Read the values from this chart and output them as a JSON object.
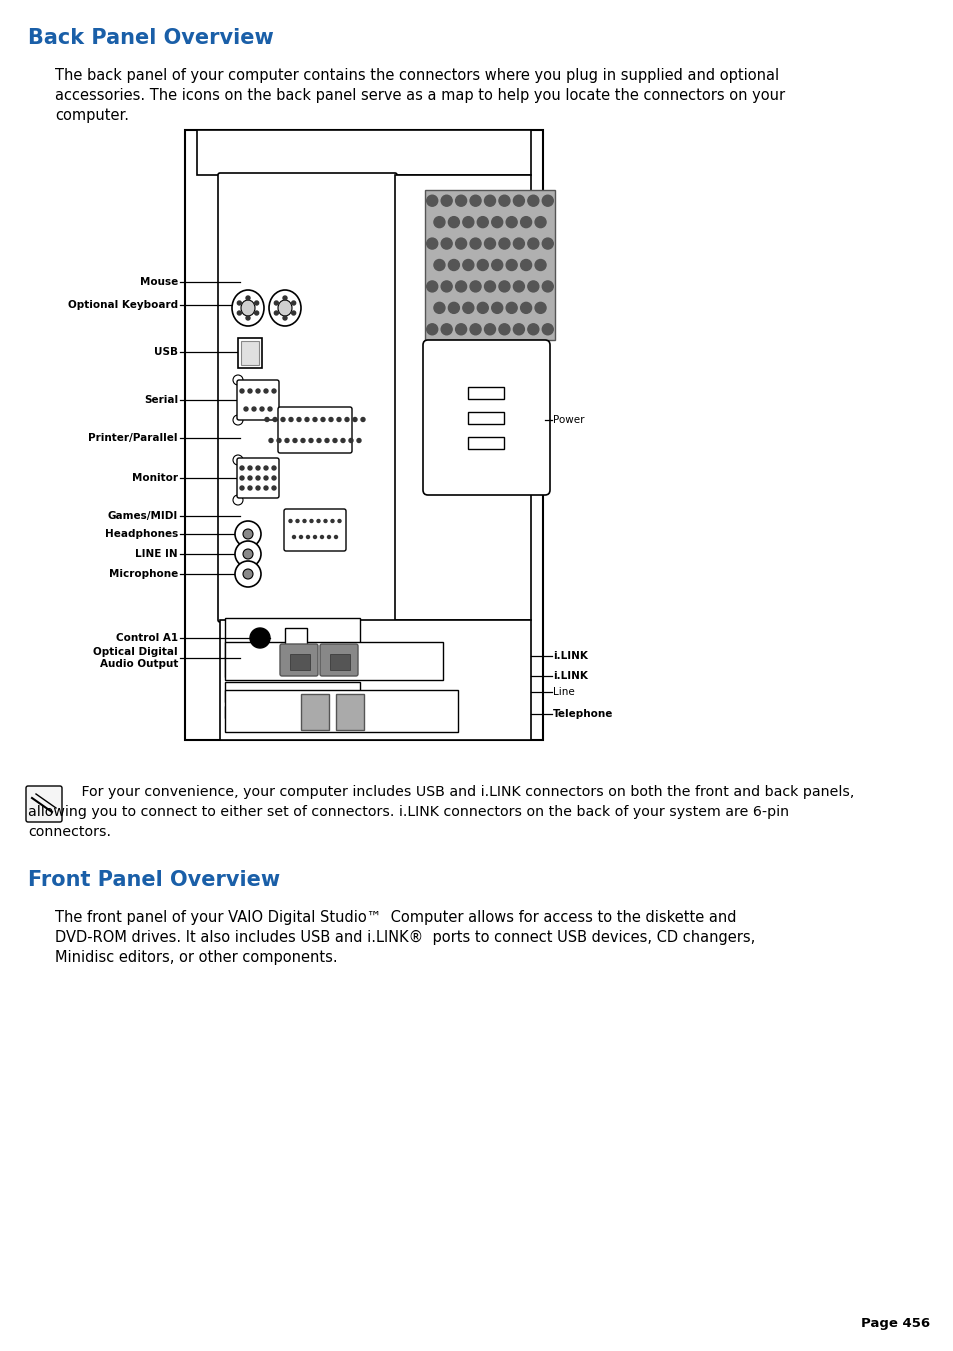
{
  "bg_color": "#ffffff",
  "title1": "Back Panel Overview",
  "title1_color": "#1a5fa8",
  "body1_line1": "The back panel of your computer contains the connectors where you plug in supplied and optional",
  "body1_line2": "accessories. The icons on the back panel serve as a map to help you locate the connectors on your",
  "body1_line3": "computer.",
  "note_line1": "   For your convenience, your computer includes USB and i.LINK connectors on both the front and back panels,",
  "note_line2": "allowing you to connect to either set of connectors. i.LINK connectors on the back of your system are 6-pin",
  "note_line3": "connectors.",
  "title2": "Front Panel Overview",
  "title2_color": "#1a5fa8",
  "body2_line1": "The front panel of your VAIO Digital Studio™  Computer allows for access to the diskette and",
  "body2_line2": "DVD-ROM drives. It also includes USB and i.LINK®  ports to connect USB devices, CD changers,",
  "body2_line3": "Minidisc editors, or other components.",
  "page_text": "Page 456"
}
